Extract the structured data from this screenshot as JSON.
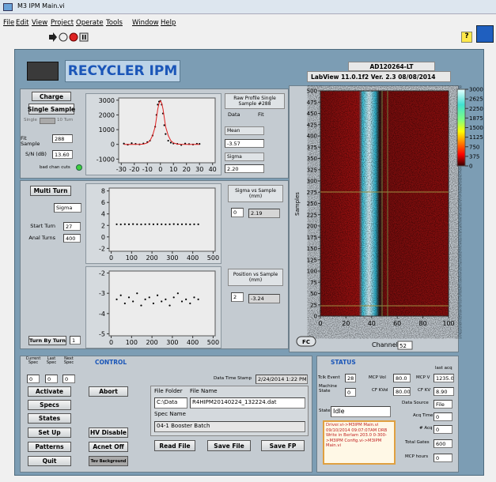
{
  "window": {
    "title": "M3 IPM Main.vi",
    "menu": [
      "File",
      "Edit",
      "View",
      "Project",
      "Operate",
      "Tools",
      "Window",
      "Help"
    ]
  },
  "header": {
    "title": "RECYCLER IPM",
    "device": "AD120264-LT",
    "version": "LabView 11.0.1f2   Ver. 2.3   08/08/2014"
  },
  "single": {
    "charge": "Charge",
    "single_sample": "Single Sample",
    "toggle_left": "Single",
    "toggle_right": "10 Turn",
    "fit_sample_label": "Fit Sample",
    "fit_sample": "288",
    "sn_label": "S/N (dB)",
    "sn": "13.60",
    "bad_chan_label": "bad chan cuts"
  },
  "raw_profile": {
    "title": "Raw Profile Single Sample #288",
    "mean_label": "Mean",
    "mean": "-3.57",
    "sigma_label": "Sigma",
    "sigma": "2.20"
  },
  "multi": {
    "multi_turn": "Multi Turn",
    "select": "Sigma",
    "start_turn_label": "Start Turn",
    "start_turn": "27",
    "anal_turns_label": "Anal Turns",
    "anal_turns": "400",
    "turn_by_turn": "Turn By Turn",
    "turn_by_turn_value": "1"
  },
  "sigma_box": {
    "title": "Sigma vs Sample (mm)",
    "index": "0",
    "value": "2.19"
  },
  "position_box": {
    "title": "Position vs Sample (mm)",
    "index": "2",
    "value": "-3.24"
  },
  "plots": {
    "raw": {
      "xlim": [
        -32,
        42
      ],
      "xticks": [
        -30,
        -20,
        -10,
        0,
        10,
        20,
        30,
        40
      ],
      "ylim": [
        -1250,
        3150
      ],
      "yticks": [
        -1000,
        0,
        1000,
        2000,
        3000
      ],
      "series": [
        {
          "name": "Data",
          "color": "#000000",
          "mode": "markers",
          "x": [
            -28,
            -25,
            -22,
            -19,
            -16,
            -13,
            -10,
            -8,
            -6,
            -4,
            -3,
            -2,
            -1,
            0,
            1,
            2,
            3,
            4,
            6,
            8,
            10,
            13,
            16,
            19,
            22,
            25,
            28,
            30
          ],
          "values": [
            50,
            -20,
            80,
            30,
            0,
            60,
            150,
            250,
            600,
            1200,
            2000,
            2700,
            2900,
            2950,
            2700,
            2100,
            1300,
            700,
            250,
            120,
            60,
            30,
            -40,
            50,
            20,
            -10,
            40,
            30
          ]
        },
        {
          "name": "Fit",
          "color": "#e02020",
          "mode": "line",
          "x": [
            -28,
            -25,
            -22,
            -19,
            -16,
            -13,
            -10,
            -8,
            -6,
            -4,
            -3,
            -2,
            -1,
            0,
            1,
            2,
            3,
            4,
            6,
            8,
            10,
            13,
            16,
            19,
            22,
            25,
            28,
            30
          ],
          "values": [
            0,
            0,
            0,
            0,
            5,
            20,
            100,
            250,
            600,
            1200,
            1800,
            2400,
            2800,
            2950,
            2800,
            2400,
            1800,
            1200,
            600,
            250,
            100,
            20,
            5,
            0,
            0,
            0,
            0,
            0
          ]
        }
      ]
    },
    "sigma": {
      "xlim": [
        -10,
        510
      ],
      "xticks": [
        0,
        100,
        200,
        300,
        400,
        500
      ],
      "ylim": [
        -2.5,
        8.5
      ],
      "yticks": [
        -2,
        0,
        2,
        4,
        6,
        8
      ],
      "series": [
        {
          "color": "#000000",
          "mode": "markers",
          "x": [
            27,
            47,
            67,
            87,
            107,
            127,
            147,
            167,
            187,
            207,
            227,
            247,
            267,
            287,
            307,
            327,
            347,
            367,
            387,
            407,
            427
          ],
          "values": [
            2.2,
            2.18,
            2.21,
            2.19,
            2.23,
            2.2,
            2.17,
            2.2,
            2.22,
            2.19,
            2.21,
            2.2,
            2.18,
            2.2,
            2.23,
            2.19,
            2.2,
            2.21,
            2.18,
            2.2,
            2.19
          ]
        }
      ]
    },
    "position": {
      "xlim": [
        -10,
        510
      ],
      "xticks": [
        0,
        100,
        200,
        300,
        400,
        500
      ],
      "ylim": [
        -5.1,
        -1.9
      ],
      "yticks": [
        -2,
        -3,
        -4,
        -5
      ],
      "series": [
        {
          "color": "#000000",
          "mode": "markers",
          "x": [
            27,
            47,
            67,
            87,
            107,
            127,
            147,
            167,
            187,
            207,
            227,
            247,
            267,
            287,
            307,
            327,
            347,
            367,
            387,
            407,
            427
          ],
          "values": [
            -3.3,
            -3.1,
            -3.5,
            -3.2,
            -3.4,
            -3.0,
            -3.6,
            -3.3,
            -3.2,
            -3.5,
            -3.1,
            -3.4,
            -3.3,
            -3.6,
            -3.2,
            -3.0,
            -3.4,
            -3.3,
            -3.5,
            -3.2,
            -3.3
          ]
        }
      ]
    },
    "waterfall": {
      "ylabel": "Samples",
      "xlabel": "Channel",
      "channel": "52",
      "button": "FC",
      "xlim": [
        0,
        100
      ],
      "xticks": [
        0,
        20,
        40,
        60,
        80,
        100
      ],
      "ylim": [
        0,
        500
      ],
      "yticks": [
        0,
        25,
        50,
        75,
        100,
        125,
        150,
        175,
        200,
        225,
        250,
        275,
        300,
        325,
        350,
        375,
        400,
        425,
        450,
        475,
        500
      ],
      "colorbar": {
        "lim": [
          0,
          3000
        ],
        "ticks": [
          3000,
          2625,
          2250,
          1875,
          1500,
          1125,
          750,
          375,
          0
        ]
      }
    }
  },
  "control": {
    "title": "CONTROL",
    "spec_labels": [
      "Current Spec",
      "Last Spec",
      "Next Spec"
    ],
    "spec_values": [
      "0",
      "0",
      "0"
    ],
    "buttons_left": [
      "Activate",
      "Specs",
      "States",
      "Set Up",
      "Patterns",
      "Quit"
    ],
    "abort": "Abort",
    "hv_disable": "HV Disable",
    "acnet_off": "Acnet Off",
    "tev_background": "Tev Background",
    "timestamp_label": "Data Time Stamp",
    "timestamp": "2/24/2014 1:22 PM",
    "file_folder_label": "File Folder",
    "file_name_label": "File Name",
    "file_folder": "C:\\Data",
    "file_name": "R4HIPM20140224_132224.dat",
    "spec_name_label": "Spec Name",
    "spec_name": "04-1 Booster Batch",
    "read_file": "Read File",
    "save_file": "Save File",
    "save_fp": "Save FP"
  },
  "status": {
    "title": "STATUS",
    "tclk_label": "Tclk Event",
    "tclk": "28",
    "mcp_vol_label": "MCP Vol",
    "mcp_vol": "80.0",
    "last_acq_label": "last acq",
    "mcp_v_label": "MCP V",
    "mcp_v": "1235.0",
    "machine_state_label": "Machine State",
    "machine_state": "0",
    "cf_kvol_label": "CF KVol",
    "cf_kvol": "80.00",
    "cf_kv_label": "CF KV",
    "cf_kv": "8.90",
    "data_source_label": "Data Source",
    "data_source": "File",
    "state_label": "State",
    "state": "Idle",
    "acq_time_label": "Acq Time",
    "acq_time": "0",
    "n_acq_label": "# Acq",
    "n_acq": "0",
    "total_gates_label": "Total Gates",
    "total_gates": "600",
    "mcp_hours_label": "MCP hours",
    "mcp_hours": "0",
    "log": "Driver.vi->M3IPM Main.vi 09/10/2014 09:07:07AM DRB Write in Berlam 203.0 0-300->M3IPM Config.vi->M3IPM Main.vi"
  }
}
